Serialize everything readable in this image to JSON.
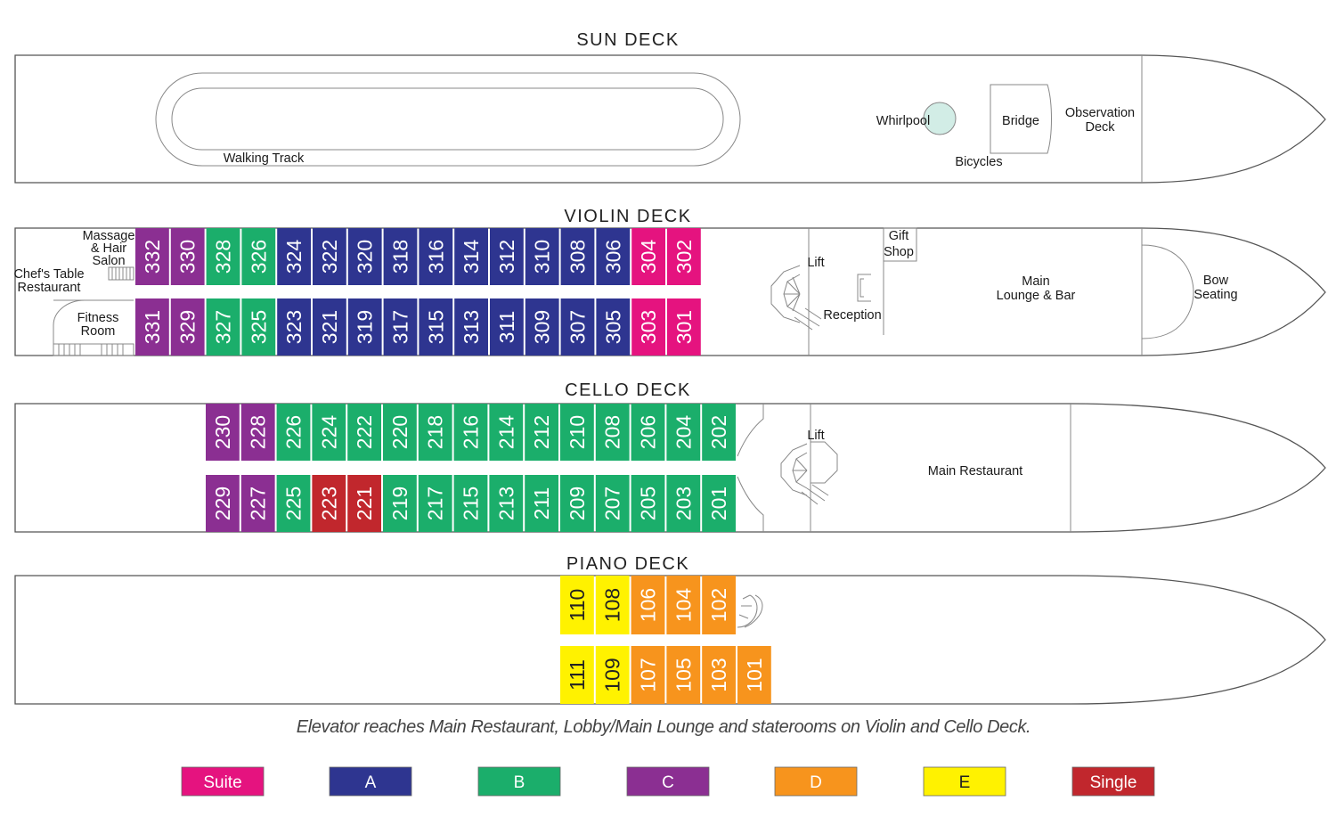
{
  "colors": {
    "Suite": "#e5137f",
    "A": "#2e3590",
    "B": "#1bae6b",
    "C": "#8b2f92",
    "D": "#f7941d",
    "E": "#fff200",
    "Single": "#c1272d"
  },
  "decks": {
    "sun": {
      "title": "SUN DECK",
      "walking_track": "Walking Track",
      "whirlpool": "Whirlpool",
      "bridge": "Bridge",
      "observation": [
        "Observation",
        "Deck"
      ],
      "bicycles": "Bicycles"
    },
    "violin": {
      "title": "VIOLIN DECK",
      "salon": [
        "Massage",
        "& Hair",
        "Salon"
      ],
      "chefs_table": [
        "Chef's Table",
        "Restaurant"
      ],
      "fitness": [
        "Fitness",
        "Room"
      ],
      "lift": "Lift",
      "reception": "Reception",
      "gift_shop": [
        "Gift",
        "Shop"
      ],
      "lounge": [
        "Main",
        "Lounge & Bar"
      ],
      "bow_seating": [
        "Bow",
        "Seating"
      ],
      "top_row": [
        {
          "num": "332",
          "cat": "C"
        },
        {
          "num": "330",
          "cat": "C"
        },
        {
          "num": "328",
          "cat": "B"
        },
        {
          "num": "326",
          "cat": "B"
        },
        {
          "num": "324",
          "cat": "A"
        },
        {
          "num": "322",
          "cat": "A"
        },
        {
          "num": "320",
          "cat": "A"
        },
        {
          "num": "318",
          "cat": "A"
        },
        {
          "num": "316",
          "cat": "A"
        },
        {
          "num": "314",
          "cat": "A"
        },
        {
          "num": "312",
          "cat": "A"
        },
        {
          "num": "310",
          "cat": "A"
        },
        {
          "num": "308",
          "cat": "A"
        },
        {
          "num": "306",
          "cat": "A"
        },
        {
          "num": "304",
          "cat": "Suite"
        },
        {
          "num": "302",
          "cat": "Suite"
        }
      ],
      "bottom_row": [
        {
          "num": "331",
          "cat": "C"
        },
        {
          "num": "329",
          "cat": "C"
        },
        {
          "num": "327",
          "cat": "B"
        },
        {
          "num": "325",
          "cat": "B"
        },
        {
          "num": "323",
          "cat": "A"
        },
        {
          "num": "321",
          "cat": "A"
        },
        {
          "num": "319",
          "cat": "A"
        },
        {
          "num": "317",
          "cat": "A"
        },
        {
          "num": "315",
          "cat": "A"
        },
        {
          "num": "313",
          "cat": "A"
        },
        {
          "num": "311",
          "cat": "A"
        },
        {
          "num": "309",
          "cat": "A"
        },
        {
          "num": "307",
          "cat": "A"
        },
        {
          "num": "305",
          "cat": "A"
        },
        {
          "num": "303",
          "cat": "Suite"
        },
        {
          "num": "301",
          "cat": "Suite"
        }
      ]
    },
    "cello": {
      "title": "CELLO DECK",
      "lift": "Lift",
      "restaurant": "Main Restaurant",
      "top_row": [
        {
          "num": "230",
          "cat": "C"
        },
        {
          "num": "228",
          "cat": "C"
        },
        {
          "num": "226",
          "cat": "B"
        },
        {
          "num": "224",
          "cat": "B"
        },
        {
          "num": "222",
          "cat": "B"
        },
        {
          "num": "220",
          "cat": "B"
        },
        {
          "num": "218",
          "cat": "B"
        },
        {
          "num": "216",
          "cat": "B"
        },
        {
          "num": "214",
          "cat": "B"
        },
        {
          "num": "212",
          "cat": "B"
        },
        {
          "num": "210",
          "cat": "B"
        },
        {
          "num": "208",
          "cat": "B"
        },
        {
          "num": "206",
          "cat": "B"
        },
        {
          "num": "204",
          "cat": "B"
        },
        {
          "num": "202",
          "cat": "B"
        }
      ],
      "bottom_row": [
        {
          "num": "229",
          "cat": "C"
        },
        {
          "num": "227",
          "cat": "C"
        },
        {
          "num": "225",
          "cat": "B"
        },
        {
          "num": "223",
          "cat": "Single"
        },
        {
          "num": "221",
          "cat": "Single"
        },
        {
          "num": "219",
          "cat": "B"
        },
        {
          "num": "217",
          "cat": "B"
        },
        {
          "num": "215",
          "cat": "B"
        },
        {
          "num": "213",
          "cat": "B"
        },
        {
          "num": "211",
          "cat": "B"
        },
        {
          "num": "209",
          "cat": "B"
        },
        {
          "num": "207",
          "cat": "B"
        },
        {
          "num": "205",
          "cat": "B"
        },
        {
          "num": "203",
          "cat": "B"
        },
        {
          "num": "201",
          "cat": "B"
        }
      ]
    },
    "piano": {
      "title": "PIANO DECK",
      "top_row": [
        {
          "num": "110",
          "cat": "E"
        },
        {
          "num": "108",
          "cat": "E"
        },
        {
          "num": "106",
          "cat": "D"
        },
        {
          "num": "104",
          "cat": "D"
        },
        {
          "num": "102",
          "cat": "D"
        }
      ],
      "bottom_row": [
        {
          "num": "111",
          "cat": "E"
        },
        {
          "num": "109",
          "cat": "E"
        },
        {
          "num": "107",
          "cat": "D"
        },
        {
          "num": "105",
          "cat": "D"
        },
        {
          "num": "103",
          "cat": "D"
        },
        {
          "num": "101",
          "cat": "D"
        }
      ]
    }
  },
  "note": "Elevator reaches Main Restaurant, Lobby/Main Lounge and staterooms on Violin and Cello Deck.",
  "legend": [
    {
      "label": "Suite",
      "cat": "Suite"
    },
    {
      "label": "A",
      "cat": "A"
    },
    {
      "label": "B",
      "cat": "B"
    },
    {
      "label": "C",
      "cat": "C"
    },
    {
      "label": "D",
      "cat": "D"
    },
    {
      "label": "E",
      "cat": "E"
    },
    {
      "label": "Single",
      "cat": "Single"
    }
  ]
}
